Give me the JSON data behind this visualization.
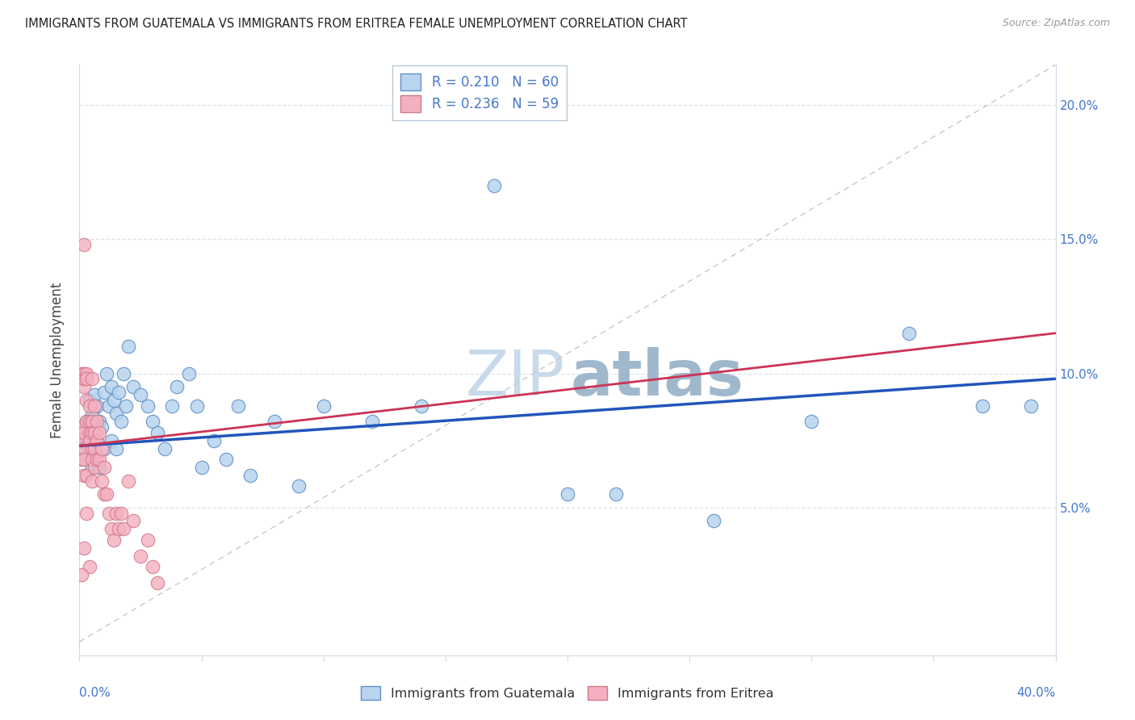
{
  "title": "IMMIGRANTS FROM GUATEMALA VS IMMIGRANTS FROM ERITREA FEMALE UNEMPLOYMENT CORRELATION CHART",
  "source": "Source: ZipAtlas.com",
  "ylabel": "Female Unemployment",
  "ytick_labels": [
    "5.0%",
    "10.0%",
    "15.0%",
    "20.0%"
  ],
  "ytick_values": [
    0.05,
    0.1,
    0.15,
    0.2
  ],
  "xlim": [
    0.0,
    0.4
  ],
  "ylim": [
    -0.005,
    0.215
  ],
  "legend_entries": [
    {
      "label": "R = 0.210   N = 60",
      "color": "#a8c8e8"
    },
    {
      "label": "R = 0.236   N = 59",
      "color": "#f4a8b8"
    }
  ],
  "watermark_zip": "ZIP",
  "watermark_atlas": "atlas",
  "watermark_color_zip": "#c8daea",
  "watermark_color_atlas": "#a0b8cc",
  "blue_fill": "#b8d4ee",
  "blue_edge": "#6090c8",
  "pink_fill": "#f4b0c0",
  "pink_edge": "#d07888",
  "blue_line_color": "#2255bb",
  "pink_line_color": "#cc3355",
  "gray_dash_color": "#c8c8c8",
  "tick_label_color": "#4477cc",
  "axis_color": "#d0d8e8",
  "grid_color": "#dde4ee",
  "title_color": "#222222",
  "source_color": "#999999",
  "ylabel_color": "#444444",
  "bottom_legend_color": "#333333",
  "guatemala_x": [
    0.001,
    0.002,
    0.002,
    0.003,
    0.003,
    0.003,
    0.004,
    0.004,
    0.005,
    0.005,
    0.005,
    0.006,
    0.006,
    0.007,
    0.007,
    0.008,
    0.008,
    0.009,
    0.01,
    0.01,
    0.011,
    0.012,
    0.013,
    0.013,
    0.014,
    0.015,
    0.015,
    0.016,
    0.017,
    0.018,
    0.019,
    0.02,
    0.022,
    0.025,
    0.028,
    0.03,
    0.032,
    0.035,
    0.038,
    0.04,
    0.045,
    0.048,
    0.05,
    0.055,
    0.06,
    0.065,
    0.07,
    0.08,
    0.09,
    0.1,
    0.12,
    0.14,
    0.17,
    0.2,
    0.22,
    0.26,
    0.3,
    0.34,
    0.37,
    0.39
  ],
  "guatemala_y": [
    0.075,
    0.07,
    0.08,
    0.068,
    0.076,
    0.082,
    0.072,
    0.09,
    0.065,
    0.085,
    0.078,
    0.092,
    0.07,
    0.088,
    0.075,
    0.082,
    0.065,
    0.08,
    0.093,
    0.072,
    0.1,
    0.088,
    0.075,
    0.095,
    0.09,
    0.085,
    0.072,
    0.093,
    0.082,
    0.1,
    0.088,
    0.11,
    0.095,
    0.092,
    0.088,
    0.082,
    0.078,
    0.072,
    0.088,
    0.095,
    0.1,
    0.088,
    0.065,
    0.075,
    0.068,
    0.088,
    0.062,
    0.082,
    0.058,
    0.088,
    0.082,
    0.088,
    0.17,
    0.055,
    0.055,
    0.045,
    0.082,
    0.115,
    0.088,
    0.088
  ],
  "eritrea_x": [
    0.001,
    0.001,
    0.001,
    0.001,
    0.002,
    0.002,
    0.002,
    0.002,
    0.002,
    0.002,
    0.002,
    0.002,
    0.003,
    0.003,
    0.003,
    0.003,
    0.003,
    0.004,
    0.004,
    0.004,
    0.004,
    0.005,
    0.005,
    0.005,
    0.005,
    0.005,
    0.005,
    0.006,
    0.006,
    0.006,
    0.006,
    0.007,
    0.007,
    0.007,
    0.008,
    0.008,
    0.009,
    0.009,
    0.01,
    0.01,
    0.011,
    0.012,
    0.013,
    0.014,
    0.015,
    0.016,
    0.017,
    0.018,
    0.02,
    0.022,
    0.025,
    0.028,
    0.03,
    0.032,
    0.002,
    0.003,
    0.002,
    0.004,
    0.001
  ],
  "eritrea_y": [
    0.068,
    0.075,
    0.08,
    0.1,
    0.098,
    0.072,
    0.095,
    0.068,
    0.078,
    0.062,
    0.1,
    0.098,
    0.09,
    0.082,
    0.1,
    0.098,
    0.062,
    0.088,
    0.082,
    0.078,
    0.075,
    0.098,
    0.082,
    0.078,
    0.072,
    0.068,
    0.06,
    0.088,
    0.078,
    0.072,
    0.065,
    0.082,
    0.075,
    0.068,
    0.078,
    0.068,
    0.072,
    0.06,
    0.065,
    0.055,
    0.055,
    0.048,
    0.042,
    0.038,
    0.048,
    0.042,
    0.048,
    0.042,
    0.06,
    0.045,
    0.032,
    0.038,
    0.028,
    0.022,
    0.148,
    0.048,
    0.035,
    0.028,
    0.025
  ],
  "blue_regline": [
    0.073,
    0.098
  ],
  "pink_regline": [
    0.073,
    0.115
  ]
}
